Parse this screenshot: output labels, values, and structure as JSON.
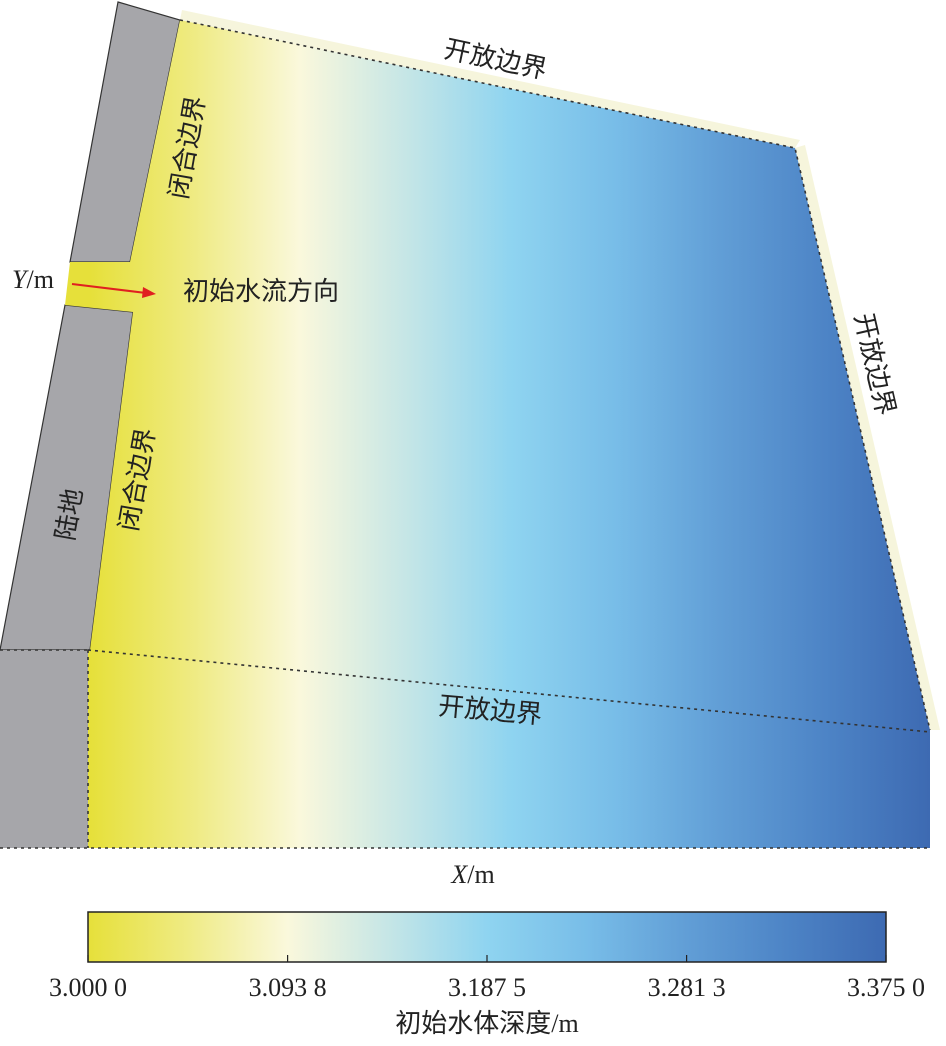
{
  "labels": {
    "open_top": "开放边界",
    "open_right": "开放边界",
    "open_middle": "开放边界",
    "closed_upper": "闭合边界",
    "closed_lower": "闭合边界",
    "land": "陆地",
    "flow": "初始水流方向"
  },
  "axes": {
    "y": {
      "symbol": "Y",
      "unit": "/m"
    },
    "x": {
      "symbol": "X",
      "unit": "/m"
    }
  },
  "colorbar": {
    "title": "初始水体深度/m",
    "lim": [
      3.0,
      3.375
    ],
    "ticks": [
      {
        "value": 3.0,
        "label": "3.000 0"
      },
      {
        "value": 3.0938,
        "label": "3.093 8"
      },
      {
        "value": 3.1875,
        "label": "3.187 5"
      },
      {
        "value": 3.2813,
        "label": "3.281 3"
      },
      {
        "value": 3.375,
        "label": "3.375 0"
      }
    ],
    "colors": [
      "#e6e03a",
      "#efeb84",
      "#faf8dc",
      "#c6e6e6",
      "#8fd4f0",
      "#78bde8",
      "#619ed6",
      "#4d84c6",
      "#3d6ab2"
    ]
  }
}
